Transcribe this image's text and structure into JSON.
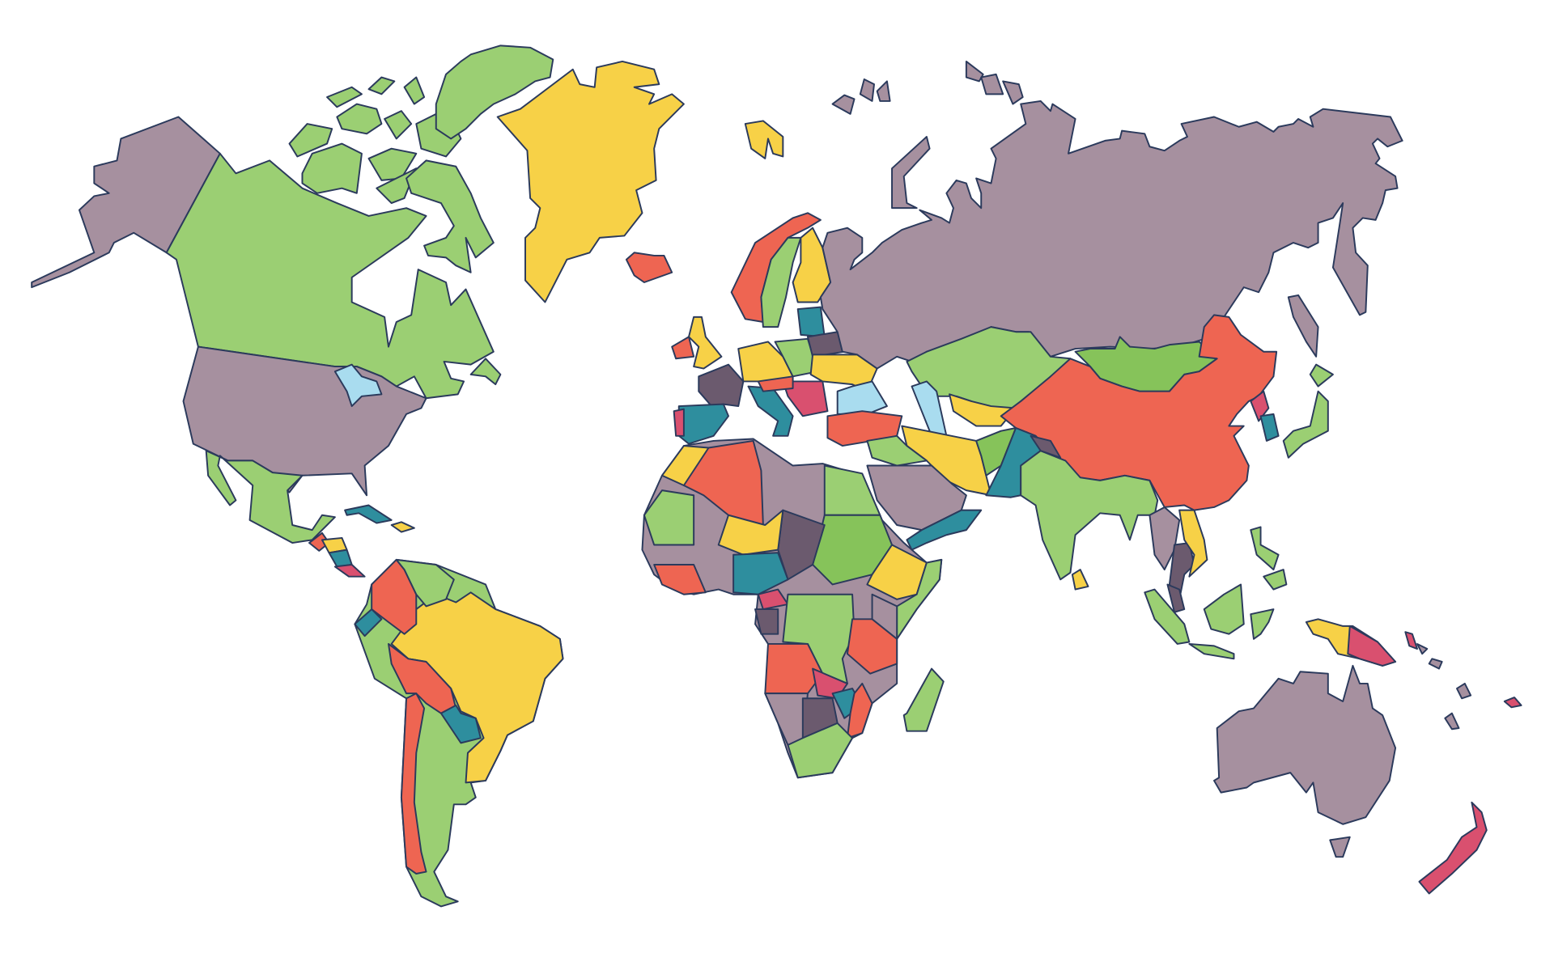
{
  "map": {
    "background": "#ffffff",
    "border_color": "#2b3a5c",
    "palette": {
      "mauve": "#a6909f",
      "green": "#9bcf73",
      "mid-green": "#86c35a",
      "yellow": "#f7d147",
      "red": "#ee6552",
      "teal": "#2e8e9e",
      "plum": "#6b5a6e",
      "pink": "#d9506f",
      "water": "#a9dcef"
    }
  }
}
